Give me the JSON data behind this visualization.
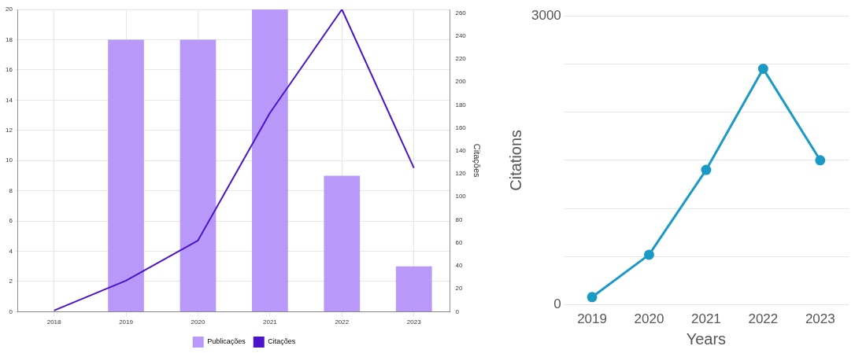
{
  "chart_data": [
    {
      "type": "bar",
      "categories": [
        "2018",
        "2019",
        "2020",
        "2021",
        "2022",
        "2023"
      ],
      "series": [
        {
          "name": "Publicações",
          "color": "#b899fa",
          "values": [
            0,
            18,
            18,
            20,
            9,
            3
          ]
        },
        {
          "name": "Citações",
          "type": "line",
          "axis": "y2",
          "color": "#4a14c8",
          "values": [
            1,
            27,
            62,
            173,
            263,
            125
          ]
        }
      ],
      "ylim": [
        0,
        20
      ],
      "yticks": [
        0,
        2,
        4,
        6,
        8,
        10,
        12,
        14,
        16,
        18,
        20
      ],
      "y2lim": [
        0,
        263
      ],
      "y2ticks": [
        0,
        20,
        40,
        60,
        80,
        100,
        120,
        140,
        160,
        180,
        200,
        220,
        240,
        260
      ],
      "y2label": "Citações",
      "grid": true,
      "legend": "bottom",
      "marker": "none"
    },
    {
      "type": "line",
      "categories": [
        "2019",
        "2020",
        "2021",
        "2022",
        "2023"
      ],
      "series": [
        {
          "color": "#1a9ac4",
          "values": [
            80,
            520,
            1400,
            2450,
            1500
          ]
        }
      ],
      "ylim": [
        0,
        3000
      ],
      "yticks": [
        0,
        {
          "value": 500,
          "label": null
        },
        {
          "value": 1000,
          "label": null
        },
        {
          "value": 1500,
          "label": null
        },
        {
          "value": 2000,
          "label": null
        },
        {
          "value": 2500,
          "label": null
        },
        3000
      ],
      "xlabel": "Years",
      "ylabel": "Citations",
      "grid": "y",
      "marker": "circle"
    }
  ]
}
